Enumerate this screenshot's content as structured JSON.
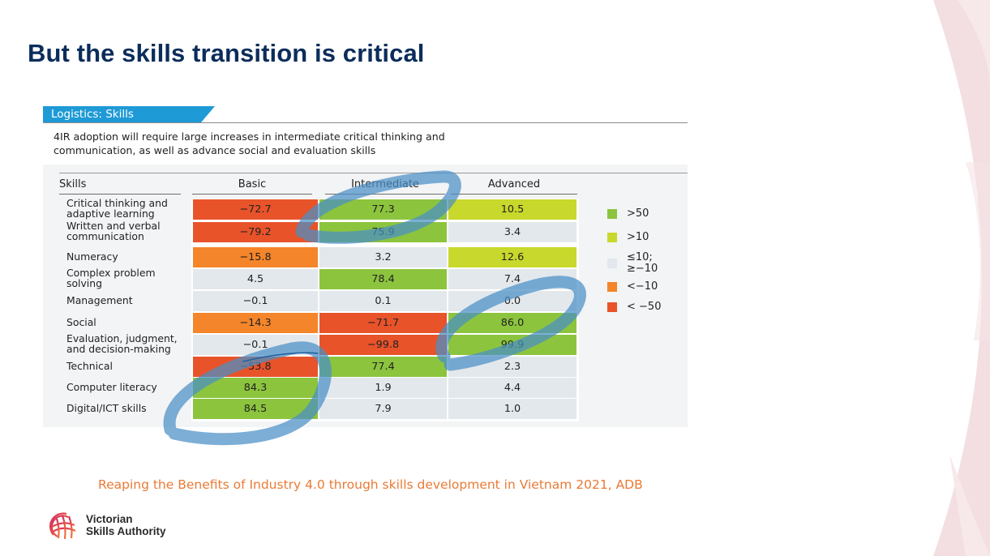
{
  "slide": {
    "title": "But the skills transition is critical",
    "source_note": "Reaping the Benefits of Industry 4.0 through skills development  in Vietnam 2021, ADB"
  },
  "logo": {
    "line1": "Victorian",
    "line2": "Skills Authority"
  },
  "colors": {
    "title": "#0b2d5b",
    "tag": "#1e9ad6",
    "gt50": "#8cc43e",
    "gt10": "#c8d82c",
    "neutral": "#e3e8ec",
    "lt_minus10": "#f4852a",
    "lt_minus50": "#e8532a",
    "annotation": "#4a8fc6",
    "source": "#ea7a35"
  },
  "chart_data": {
    "type": "table",
    "title": "Logistics: Skills",
    "subtitle": "4IR adoption will require large increases in intermediate critical thinking and communication, as well as advance social and evaluation skills",
    "row_header": "Skills",
    "columns": [
      "Basic",
      "Intermediate",
      "Advanced"
    ],
    "rows": [
      {
        "label": "Critical thinking and adaptive learning",
        "values": [
          -72.7,
          77.3,
          10.5
        ],
        "display": [
          "−72.7",
          "77.3",
          "10.5"
        ]
      },
      {
        "label": "Written and verbal communication",
        "values": [
          -79.2,
          75.9,
          3.4
        ],
        "display": [
          "−79.2",
          "75.9",
          "3.4"
        ]
      },
      {
        "label": "Numeracy",
        "values": [
          -15.8,
          3.2,
          12.6
        ],
        "display": [
          "−15.8",
          "3.2",
          "12.6"
        ]
      },
      {
        "label": "Complex problem solving",
        "values": [
          4.5,
          78.4,
          7.4
        ],
        "display": [
          "4.5",
          "78.4",
          "7.4"
        ]
      },
      {
        "label": "Management",
        "values": [
          -0.1,
          0.1,
          0.0
        ],
        "display": [
          "−0.1",
          "0.1",
          "0.0"
        ]
      },
      {
        "label": "Social",
        "values": [
          -14.3,
          -71.7,
          86.0
        ],
        "display": [
          "−14.3",
          "−71.7",
          "86.0"
        ]
      },
      {
        "label": "Evaluation, judgment, and decision-making",
        "values": [
          -0.1,
          -99.8,
          99.9
        ],
        "display": [
          "−0.1",
          "−99.8",
          "99.9"
        ]
      },
      {
        "label": "Technical",
        "values": [
          -53.8,
          77.4,
          2.3
        ],
        "display": [
          "−53.8",
          "77.4",
          "2.3"
        ]
      },
      {
        "label": "Computer literacy",
        "values": [
          84.3,
          1.9,
          4.4
        ],
        "display": [
          "84.3",
          "1.9",
          "4.4"
        ]
      },
      {
        "label": "Digital/ICT skills",
        "values": [
          84.5,
          7.9,
          1.0
        ],
        "display": [
          "84.5",
          "7.9",
          "1.0"
        ]
      }
    ],
    "legend": [
      {
        "label": ">50",
        "color_key": "gt50"
      },
      {
        "label": ">10",
        "color_key": "gt10"
      },
      {
        "label": "≤10;\n≥−10",
        "line1": "≤10;",
        "line2": "≥−10",
        "color_key": "neutral"
      },
      {
        "label": "<−10",
        "color_key": "lt_minus10"
      },
      {
        "label": "< −50",
        "color_key": "lt_minus50"
      }
    ],
    "legend_position": "right",
    "annotations": [
      "hand-drawn circle around Intermediate: Critical thinking and Written/verbal communication",
      "hand-drawn circle around Advanced: Management, Social, Evaluation",
      "hand-drawn circle around Basic: Technical, Computer literacy, Digital/ICT skills"
    ]
  }
}
